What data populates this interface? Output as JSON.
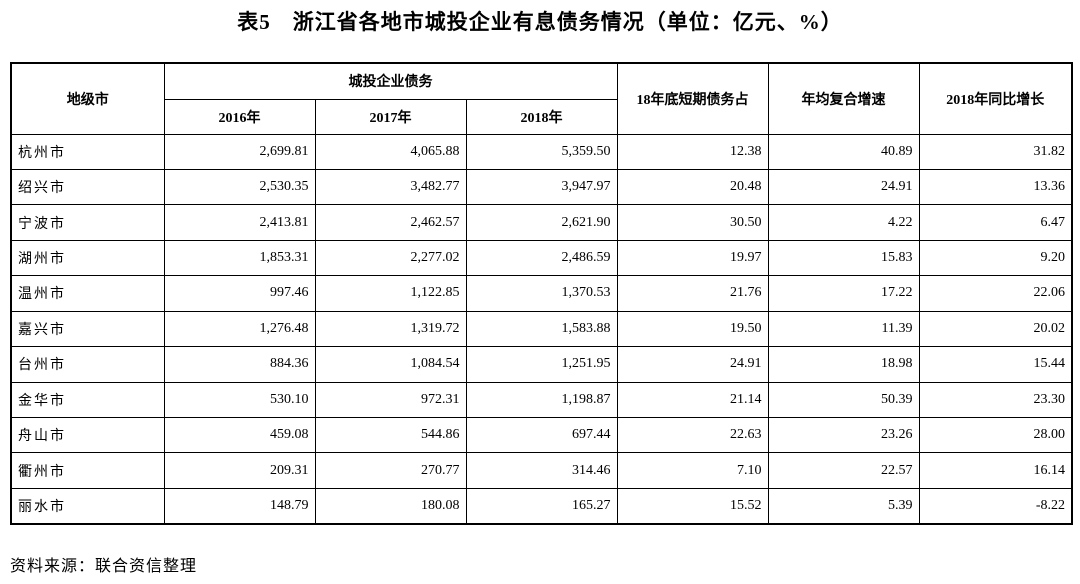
{
  "title": "表5　浙江省各地市城投企业有息债务情况（单位：亿元、%）",
  "table": {
    "header": {
      "city": "地级市",
      "debt": "城投企业债务",
      "years": [
        "2016年",
        "2017年",
        "2018年"
      ],
      "short_term": "18年底短期债务占",
      "cagr": "年均复合增速",
      "yoy": "2018年同比增长"
    },
    "rows": [
      [
        "杭州市",
        "2,699.81",
        "4,065.88",
        "5,359.50",
        "12.38",
        "40.89",
        "31.82"
      ],
      [
        "绍兴市",
        "2,530.35",
        "3,482.77",
        "3,947.97",
        "20.48",
        "24.91",
        "13.36"
      ],
      [
        "宁波市",
        "2,413.81",
        "2,462.57",
        "2,621.90",
        "30.50",
        "4.22",
        "6.47"
      ],
      [
        "湖州市",
        "1,853.31",
        "2,277.02",
        "2,486.59",
        "19.97",
        "15.83",
        "9.20"
      ],
      [
        "温州市",
        "997.46",
        "1,122.85",
        "1,370.53",
        "21.76",
        "17.22",
        "22.06"
      ],
      [
        "嘉兴市",
        "1,276.48",
        "1,319.72",
        "1,583.88",
        "19.50",
        "11.39",
        "20.02"
      ],
      [
        "台州市",
        "884.36",
        "1,084.54",
        "1,251.95",
        "24.91",
        "18.98",
        "15.44"
      ],
      [
        "金华市",
        "530.10",
        "972.31",
        "1,198.87",
        "21.14",
        "50.39",
        "23.30"
      ],
      [
        "舟山市",
        "459.08",
        "544.86",
        "697.44",
        "22.63",
        "23.26",
        "28.00"
      ],
      [
        "衢州市",
        "209.31",
        "270.77",
        "314.46",
        "7.10",
        "22.57",
        "16.14"
      ],
      [
        "丽水市",
        "148.79",
        "180.08",
        "165.27",
        "15.52",
        "5.39",
        "-8.22"
      ]
    ]
  },
  "source": "资料来源：联合资信整理"
}
